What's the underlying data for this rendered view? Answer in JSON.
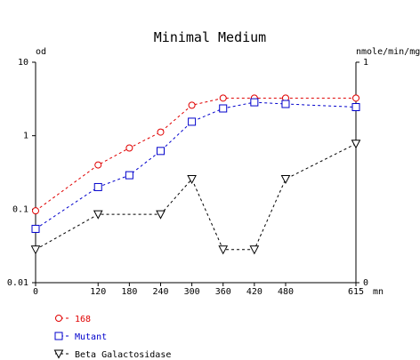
{
  "colors": {
    "series_168": "#e00000",
    "series_mutant": "#0000cc",
    "series_beta": "#000000",
    "axis": "#000000",
    "background": "#ffffff"
  },
  "chart_data": {
    "type": "line",
    "title": "Minimal Medium",
    "left_axis_label": "od",
    "right_axis_label": "nmole/min/mg",
    "x_unit_label": "mn",
    "x_ticks": [
      0,
      120,
      180,
      240,
      300,
      360,
      420,
      480,
      615
    ],
    "x_tick_labels": [
      "0",
      "120",
      "180",
      "240",
      "300",
      "360",
      "420",
      "480",
      "615"
    ],
    "xlim": [
      0,
      615
    ],
    "left_axis": {
      "scale": "log",
      "ylim": [
        0.01,
        10
      ],
      "ticks": [
        0.01,
        0.1,
        1,
        10
      ],
      "tick_labels": [
        "0.01",
        "0.1",
        "1",
        "10"
      ]
    },
    "right_axis": {
      "scale": "linear",
      "ylim": [
        0,
        1
      ],
      "ticks": [
        0,
        1
      ],
      "tick_labels": [
        "0",
        "1"
      ]
    },
    "grid": false,
    "legend_position": "bottom-left",
    "series": [
      {
        "name": "168",
        "axis": "left",
        "marker": "circle",
        "line_style": "dashed",
        "color": "#e00000",
        "x": [
          0,
          120,
          180,
          240,
          300,
          360,
          420,
          480,
          615
        ],
        "y": [
          0.095,
          0.4,
          0.68,
          1.12,
          2.6,
          3.25,
          3.25,
          3.25,
          3.25
        ]
      },
      {
        "name": "Mutant",
        "axis": "left",
        "marker": "square",
        "line_style": "dashed",
        "color": "#0000cc",
        "x": [
          0,
          120,
          180,
          240,
          300,
          360,
          420,
          480,
          615
        ],
        "y": [
          0.054,
          0.2,
          0.29,
          0.62,
          1.55,
          2.35,
          2.85,
          2.7,
          2.45
        ]
      },
      {
        "name": "Beta Galactosidase",
        "axis": "right",
        "marker": "triangle-down",
        "line_style": "dashed",
        "color": "#000000",
        "x": [
          0,
          120,
          240,
          300,
          360,
          420,
          480,
          615
        ],
        "y": [
          0.15,
          0.31,
          0.31,
          0.47,
          0.15,
          0.15,
          0.47,
          0.63
        ]
      }
    ]
  }
}
